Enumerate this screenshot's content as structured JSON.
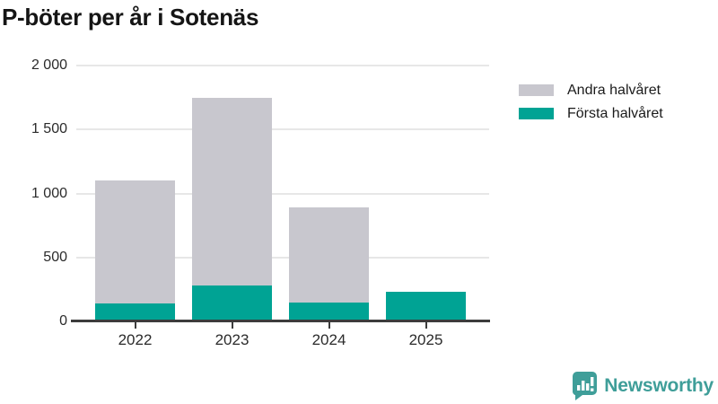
{
  "title": "P-böter per år i Sotenäs",
  "chart_data": {
    "type": "bar",
    "variant": "stacked",
    "title": "P-böter per år i Sotenäs",
    "categories": [
      "2022",
      "2023",
      "2024",
      "2025"
    ],
    "series": [
      {
        "name": "Första halvåret",
        "color": "#00a394",
        "values": [
          140,
          280,
          150,
          230
        ]
      },
      {
        "name": "Andra halvåret",
        "color": "#c8c7ce",
        "values": [
          960,
          1470,
          740,
          0
        ]
      }
    ],
    "stack_totals": [
      1100,
      1750,
      890,
      230
    ],
    "xlabel": "",
    "ylabel": "",
    "ylim": [
      0,
      2000
    ],
    "yticks": [
      {
        "value": 0,
        "label": "0"
      },
      {
        "value": 500,
        "label": "500"
      },
      {
        "value": 1000,
        "label": "1 000"
      },
      {
        "value": 1500,
        "label": "1 500"
      },
      {
        "value": 2000,
        "label": "2 000"
      }
    ],
    "grid": "horizontal",
    "legend_position": "top-right"
  },
  "legend": {
    "items": [
      {
        "label": "Andra halvåret",
        "color": "#c8c7ce"
      },
      {
        "label": "Första halvåret",
        "color": "#00a394"
      }
    ]
  },
  "branding": {
    "wordmark": "Newsworthy",
    "icon": "newsworthy-speech-bubble-bar-chart-icon",
    "brand_color": "#3f9e99"
  }
}
